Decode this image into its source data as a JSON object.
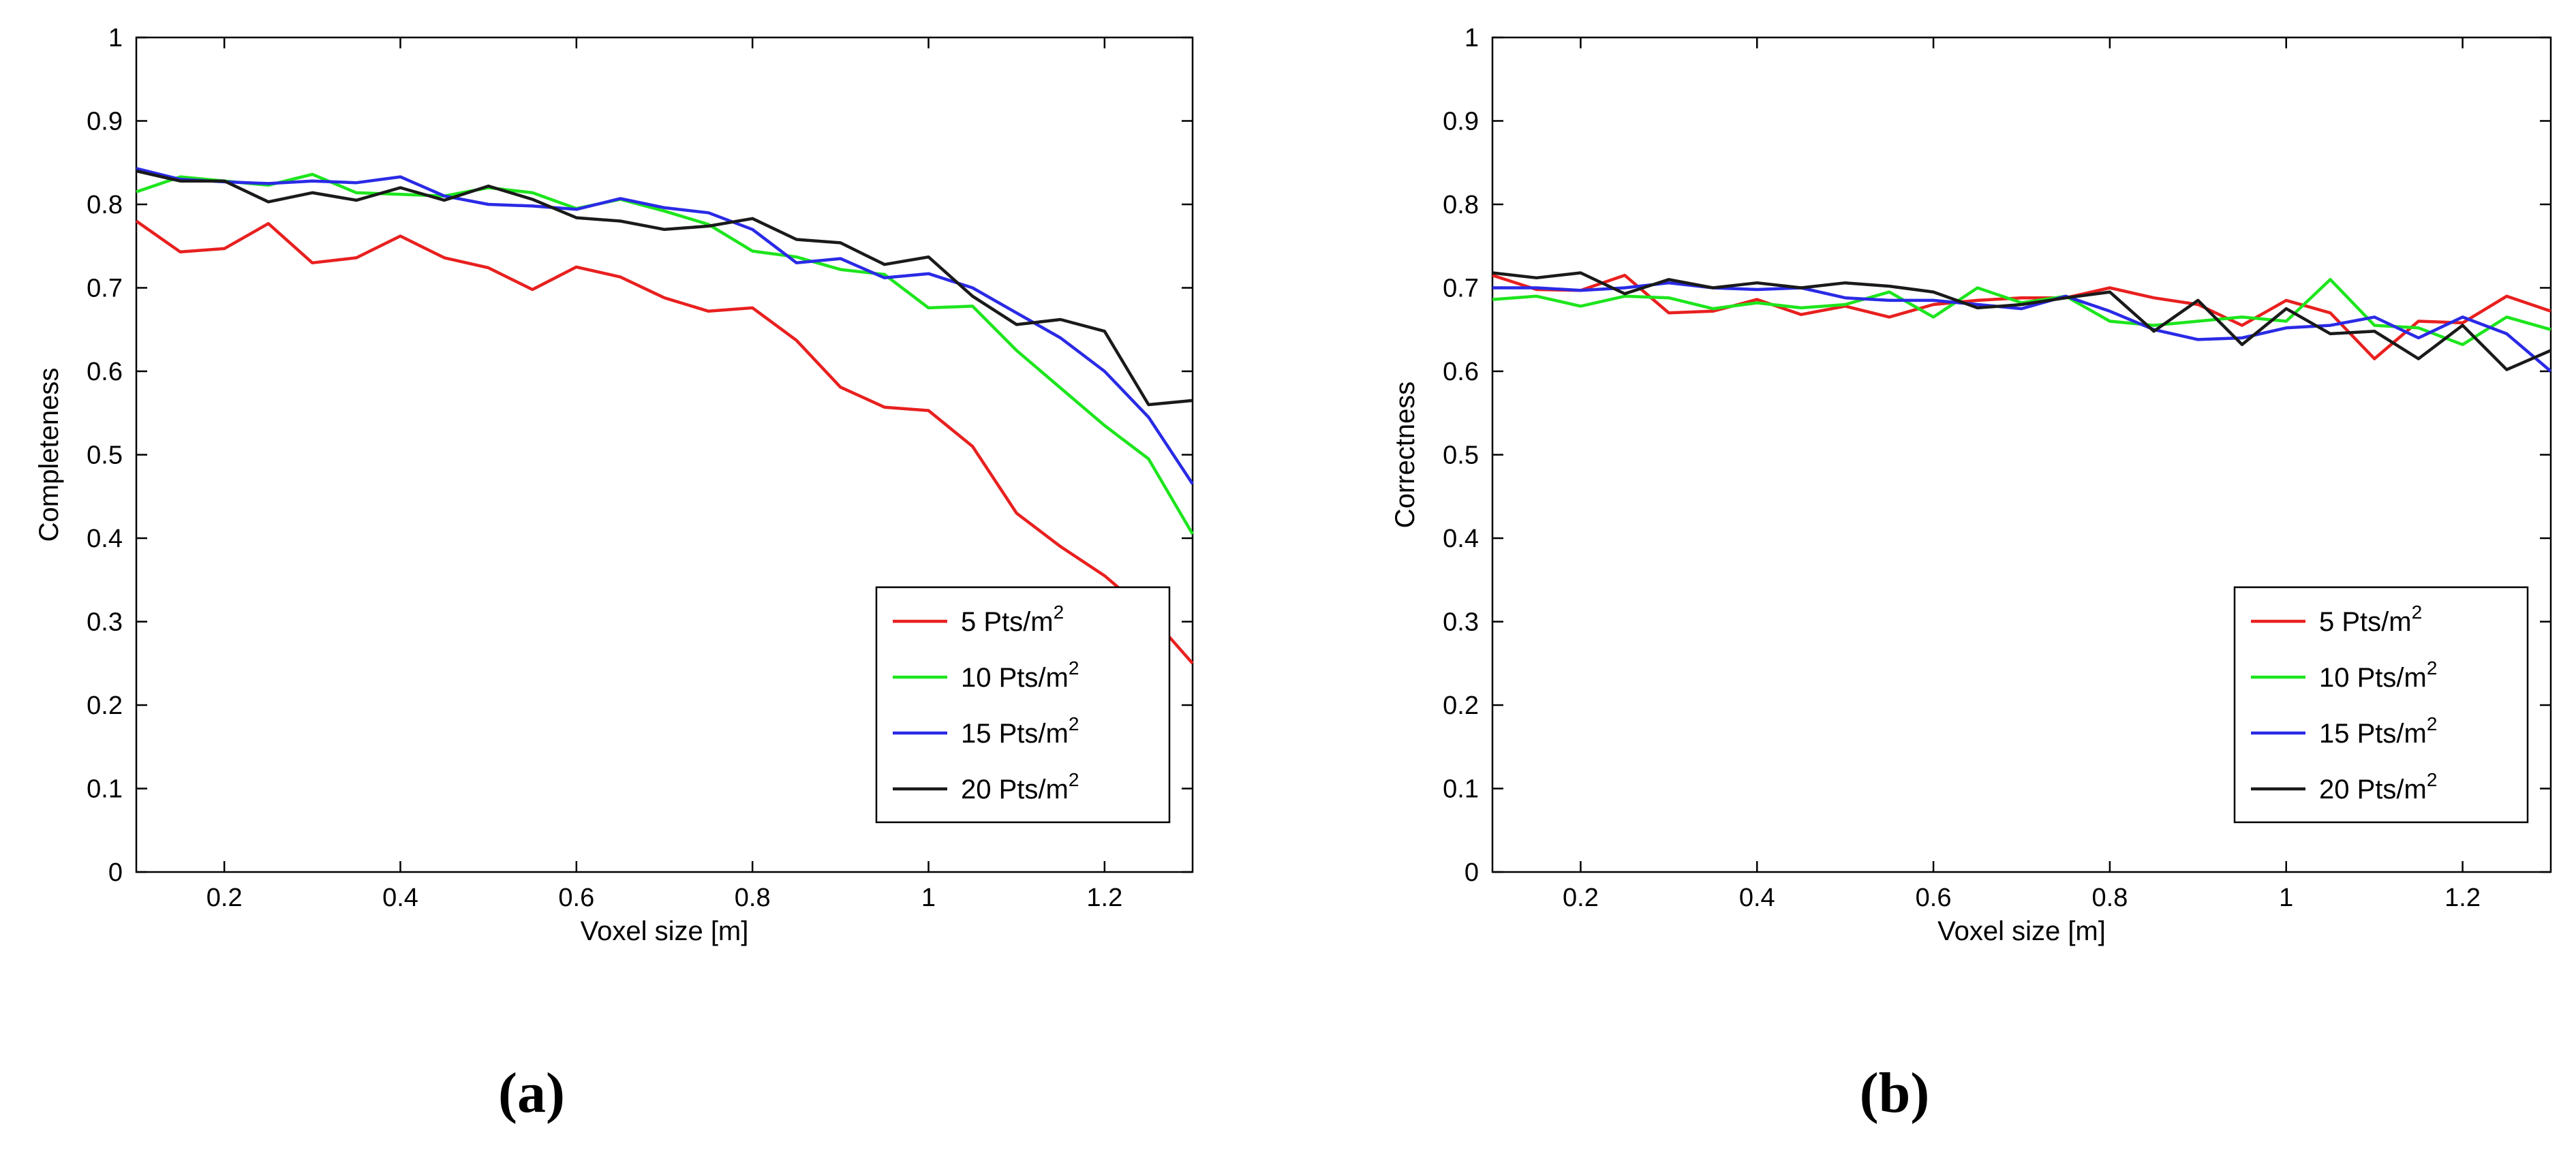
{
  "chart_data": [
    {
      "type": "line",
      "panel_label": "(a)",
      "xlabel": "Voxel size [m]",
      "ylabel": "Completeness",
      "xlim": [
        0.1,
        1.3
      ],
      "ylim": [
        0,
        1
      ],
      "xticks": [
        "0.2",
        "0.4",
        "0.6",
        "0.8",
        "1",
        "1.2"
      ],
      "yticks": [
        "0",
        "0.1",
        "0.2",
        "0.3",
        "0.4",
        "0.5",
        "0.6",
        "0.7",
        "0.8",
        "0.9",
        "1"
      ],
      "grid": false,
      "legend_position": "bottom-right",
      "x": [
        0.1,
        0.15,
        0.2,
        0.25,
        0.3,
        0.35,
        0.4,
        0.45,
        0.5,
        0.55,
        0.6,
        0.65,
        0.7,
        0.75,
        0.8,
        0.85,
        0.9,
        0.95,
        1.0,
        1.05,
        1.1,
        1.15,
        1.2,
        1.25,
        1.3
      ],
      "series": [
        {
          "name": "5 Pts/m",
          "superscript": "2",
          "color": "#e8201f",
          "values": [
            0.78,
            0.743,
            0.747,
            0.777,
            0.73,
            0.736,
            0.762,
            0.736,
            0.724,
            0.698,
            0.725,
            0.713,
            0.688,
            0.672,
            0.676,
            0.637,
            0.581,
            0.557,
            0.553,
            0.51,
            0.43,
            0.39,
            0.355,
            0.31,
            0.25
          ]
        },
        {
          "name": "10 Pts/m",
          "superscript": "2",
          "color": "#1de51d",
          "values": [
            0.815,
            0.833,
            0.828,
            0.823,
            0.836,
            0.814,
            0.812,
            0.81,
            0.82,
            0.814,
            0.795,
            0.806,
            0.792,
            0.776,
            0.744,
            0.737,
            0.722,
            0.716,
            0.676,
            0.678,
            0.625,
            0.58,
            0.535,
            0.495,
            0.405
          ]
        },
        {
          "name": "15 Pts/m",
          "superscript": "2",
          "color": "#2a2ae6",
          "values": [
            0.843,
            0.83,
            0.827,
            0.825,
            0.828,
            0.826,
            0.833,
            0.81,
            0.8,
            0.798,
            0.794,
            0.807,
            0.796,
            0.79,
            0.77,
            0.73,
            0.735,
            0.712,
            0.717,
            0.7,
            0.67,
            0.64,
            0.6,
            0.545,
            0.465
          ]
        },
        {
          "name": "20 Pts/m",
          "superscript": "2",
          "color": "#1a1a1a",
          "values": [
            0.84,
            0.828,
            0.828,
            0.803,
            0.814,
            0.805,
            0.82,
            0.805,
            0.822,
            0.806,
            0.784,
            0.78,
            0.77,
            0.774,
            0.783,
            0.758,
            0.754,
            0.728,
            0.737,
            0.69,
            0.656,
            0.662,
            0.648,
            0.56,
            0.565
          ]
        }
      ]
    },
    {
      "type": "line",
      "panel_label": "(b)",
      "xlabel": "Voxel size [m]",
      "ylabel": "Correctness",
      "xlim": [
        0.1,
        1.3
      ],
      "ylim": [
        0,
        1
      ],
      "xticks": [
        "0.2",
        "0.4",
        "0.6",
        "0.8",
        "1",
        "1.2"
      ],
      "yticks": [
        "0",
        "0.1",
        "0.2",
        "0.3",
        "0.4",
        "0.5",
        "0.6",
        "0.7",
        "0.8",
        "0.9",
        "1"
      ],
      "grid": false,
      "legend_position": "bottom-right",
      "x": [
        0.1,
        0.15,
        0.2,
        0.25,
        0.3,
        0.35,
        0.4,
        0.45,
        0.5,
        0.55,
        0.6,
        0.65,
        0.7,
        0.75,
        0.8,
        0.85,
        0.9,
        0.95,
        1.0,
        1.05,
        1.1,
        1.15,
        1.2,
        1.25,
        1.3
      ],
      "series": [
        {
          "name": "5 Pts/m",
          "superscript": "2",
          "color": "#e8201f",
          "values": [
            0.715,
            0.698,
            0.697,
            0.715,
            0.67,
            0.672,
            0.686,
            0.668,
            0.678,
            0.665,
            0.68,
            0.685,
            0.688,
            0.688,
            0.7,
            0.688,
            0.68,
            0.655,
            0.685,
            0.67,
            0.615,
            0.66,
            0.658,
            0.69,
            0.672
          ]
        },
        {
          "name": "10 Pts/m",
          "superscript": "2",
          "color": "#1de51d",
          "values": [
            0.686,
            0.69,
            0.678,
            0.69,
            0.688,
            0.675,
            0.682,
            0.676,
            0.68,
            0.695,
            0.665,
            0.7,
            0.682,
            0.69,
            0.66,
            0.655,
            0.66,
            0.665,
            0.66,
            0.71,
            0.655,
            0.652,
            0.632,
            0.665,
            0.65
          ]
        },
        {
          "name": "15 Pts/m",
          "superscript": "2",
          "color": "#2a2ae6",
          "values": [
            0.7,
            0.7,
            0.697,
            0.7,
            0.706,
            0.7,
            0.698,
            0.7,
            0.688,
            0.685,
            0.685,
            0.68,
            0.675,
            0.69,
            0.672,
            0.65,
            0.638,
            0.64,
            0.652,
            0.655,
            0.665,
            0.64,
            0.665,
            0.645,
            0.6
          ]
        },
        {
          "name": "20 Pts/m",
          "superscript": "2",
          "color": "#1a1a1a",
          "values": [
            0.718,
            0.712,
            0.718,
            0.693,
            0.71,
            0.7,
            0.706,
            0.7,
            0.706,
            0.702,
            0.695,
            0.676,
            0.68,
            0.688,
            0.695,
            0.648,
            0.685,
            0.632,
            0.675,
            0.645,
            0.648,
            0.615,
            0.655,
            0.602,
            0.625
          ]
        }
      ]
    }
  ]
}
